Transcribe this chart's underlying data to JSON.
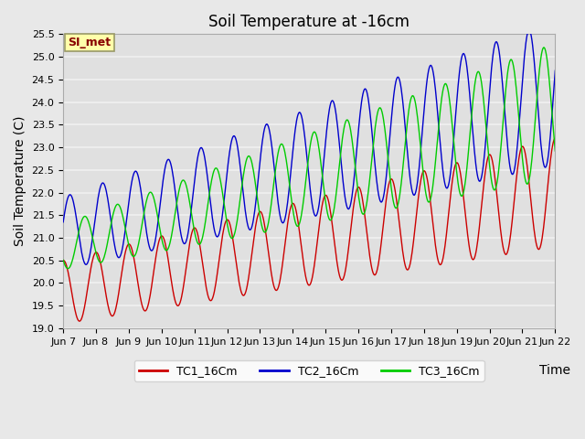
{
  "title": "Soil Temperature at -16cm",
  "ylabel": "Soil Temperature (C)",
  "xlabel": "Time",
  "ylim": [
    19.0,
    25.5
  ],
  "yticks": [
    19.0,
    19.5,
    20.0,
    20.5,
    21.0,
    21.5,
    22.0,
    22.5,
    23.0,
    23.5,
    24.0,
    24.5,
    25.0,
    25.5
  ],
  "xtick_labels": [
    "Jun 7",
    "Jun 8",
    "Jun 9",
    "Jun 10",
    "Jun 11",
    "Jun 12",
    "Jun 13",
    "Jun 14",
    "Jun 15",
    "Jun 16",
    "Jun 17",
    "Jun 18",
    "Jun 19",
    "Jun 20",
    "Jun 21",
    "Jun 22"
  ],
  "line_colors": [
    "#cc0000",
    "#0000cc",
    "#00cc00"
  ],
  "line_labels": [
    "TC1_16Cm",
    "TC2_16Cm",
    "TC3_16Cm"
  ],
  "background_color": "#e8e8e8",
  "plot_bg_color": "#e0e0e0",
  "grid_color": "#f0f0f0",
  "annotation_text": "SI_met",
  "annotation_bg": "#ffffaa",
  "annotation_border": "#aaaaaa",
  "title_fontsize": 12,
  "label_fontsize": 10,
  "tick_fontsize": 8,
  "n_points": 720,
  "days": 15
}
